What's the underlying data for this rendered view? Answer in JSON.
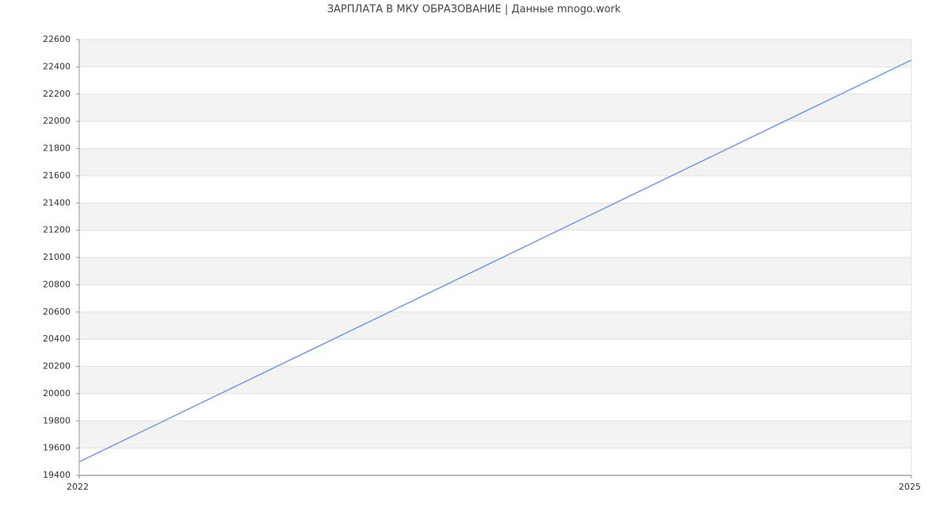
{
  "chart_data": {
    "type": "line",
    "title": "ЗАРПЛАТА В МКУ ОБРАЗОВАНИЕ | Данные mnogo.work",
    "x": [
      2022,
      2025
    ],
    "series": [
      {
        "color": "#6f9bec",
        "values": [
          19500,
          22450
        ]
      }
    ],
    "xlim": [
      2022,
      2025
    ],
    "xticks": [
      2022,
      2025
    ],
    "ylim": [
      19400,
      22600
    ],
    "yticks": [
      19400,
      19600,
      19800,
      20000,
      20200,
      20400,
      20600,
      20800,
      21000,
      21200,
      21400,
      21600,
      21800,
      22000,
      22200,
      22400,
      22600
    ],
    "grid": true
  }
}
